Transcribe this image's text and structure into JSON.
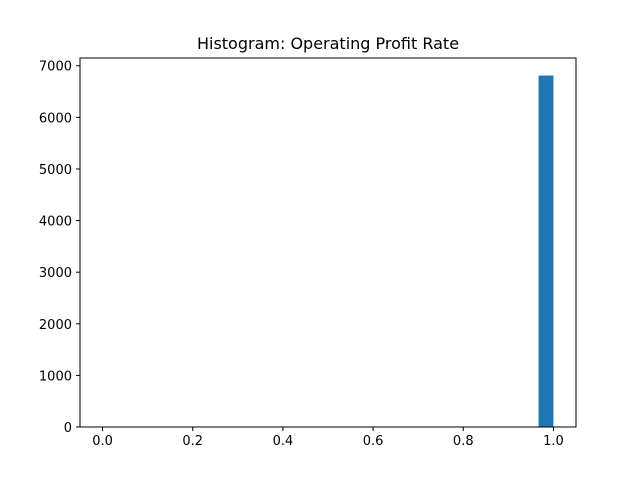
{
  "chart_data": {
    "type": "bar",
    "title": "Histogram:  Operating Profit Rate",
    "xlabel": "",
    "ylabel": "",
    "xlim": [
      -0.05,
      1.05
    ],
    "ylim": [
      0,
      7150
    ],
    "x_ticks": [
      "0.0",
      "0.2",
      "0.4",
      "0.6",
      "0.8",
      "1.0"
    ],
    "y_ticks": [
      "0",
      "1000",
      "2000",
      "3000",
      "4000",
      "5000",
      "6000",
      "7000"
    ],
    "grid": false,
    "legend": "none",
    "bar_color": "#1f77b4",
    "bins": [
      {
        "x_start": 0.967,
        "x_end": 1.0,
        "count": 6810
      }
    ]
  }
}
